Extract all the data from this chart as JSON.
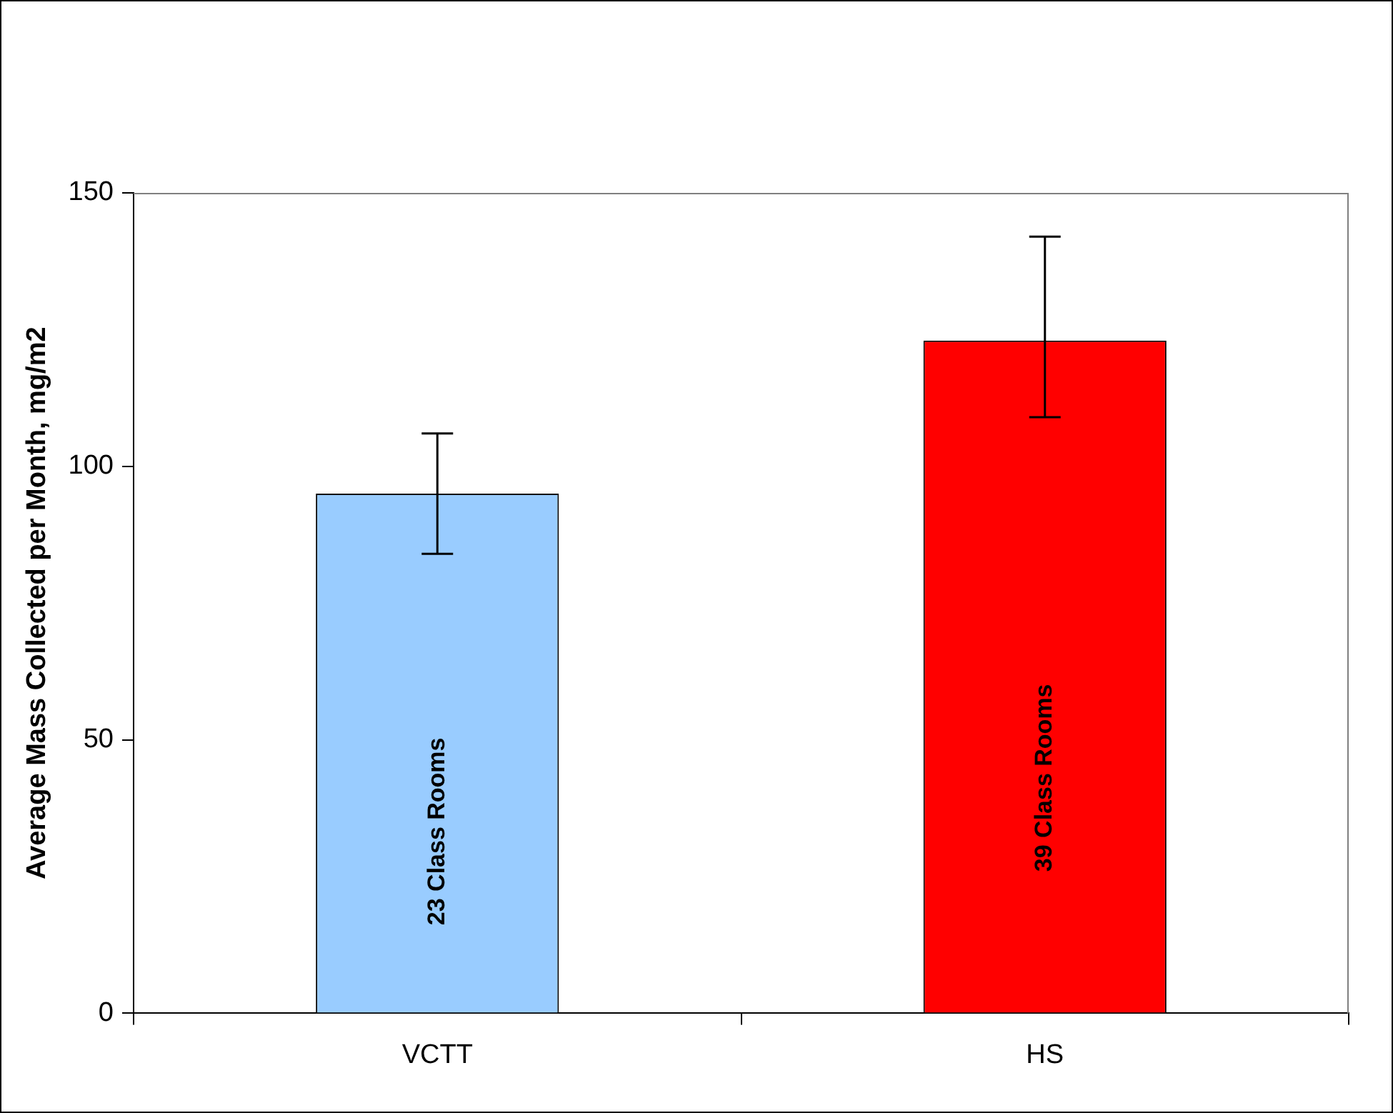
{
  "chart_data": {
    "type": "bar",
    "ylabel": "Average Mass Collected per Month, mg/m2",
    "categories": [
      "VCTT",
      "HS"
    ],
    "values": [
      95,
      123
    ],
    "colors": [
      "#99ccff",
      "#ff0000"
    ],
    "errors": [
      [
        84,
        106
      ],
      [
        109,
        142
      ]
    ],
    "ylim": [
      0,
      150
    ],
    "yticks": [
      0,
      50,
      100,
      150
    ],
    "grid": false,
    "legend": false,
    "annotations": [
      "23 Class Rooms",
      "39 Class Rooms"
    ]
  }
}
